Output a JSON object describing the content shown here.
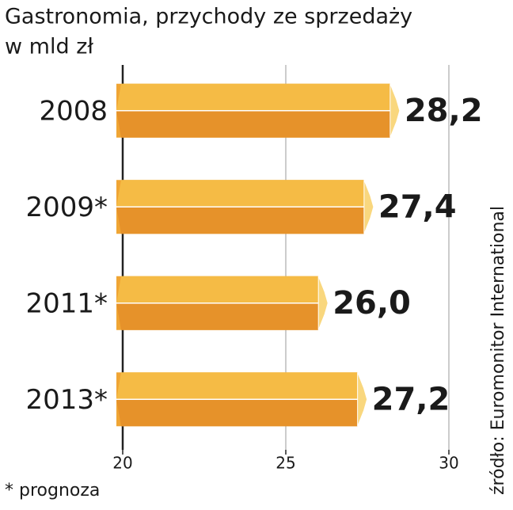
{
  "chart_data": {
    "type": "bar",
    "orientation": "horizontal",
    "title": "Gastronomia, przychody ze sprzedaży",
    "subtitle": "w mld zł",
    "categories": [
      "2008",
      "2009*",
      "2011*",
      "2013*"
    ],
    "values": [
      28.2,
      27.4,
      26.0,
      27.2
    ],
    "value_labels": [
      "28,2",
      "27,4",
      "26,0",
      "27,2"
    ],
    "color": "#f0a534",
    "xlim": [
      20,
      30
    ],
    "xticks": [
      20,
      25,
      30
    ],
    "grid": true,
    "note": "* prognoza",
    "source": "źródło: Euromonitor International"
  }
}
